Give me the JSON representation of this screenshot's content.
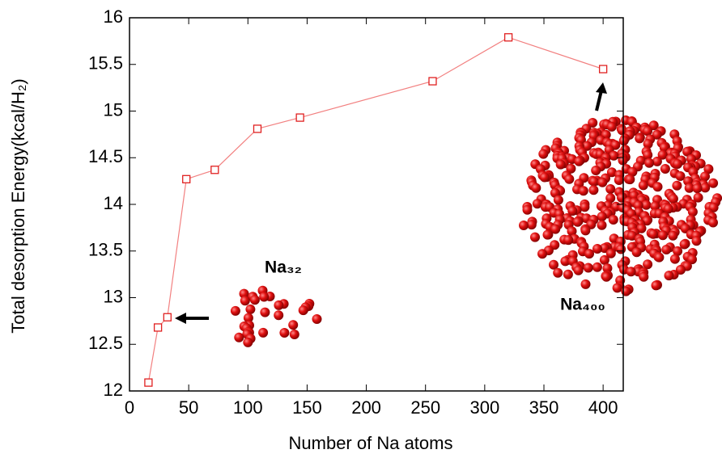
{
  "chart_data": {
    "type": "line",
    "x_label": "Number of Na atoms",
    "y_label": "Total desorption Energy(kcal/H₂)",
    "annotations": [
      "Na₃₂",
      "Na₄₀₀"
    ],
    "x": [
      16,
      24,
      32,
      48,
      72,
      108,
      144,
      256,
      320,
      400
    ],
    "series": [
      {
        "color": "#e02020",
        "line_color": "#f28080",
        "values": [
          12.09,
          12.68,
          12.79,
          14.27,
          14.37,
          14.81,
          14.93,
          15.32,
          15.79,
          15.45
        ]
      }
    ],
    "xlim": [
      0,
      417
    ],
    "ylim": [
      12,
      16
    ],
    "xticks": [
      0,
      50,
      100,
      150,
      200,
      250,
      300,
      350,
      400
    ],
    "yticks": [
      12,
      12.5,
      13,
      13.5,
      14,
      14.5,
      15,
      15.5,
      16
    ]
  }
}
